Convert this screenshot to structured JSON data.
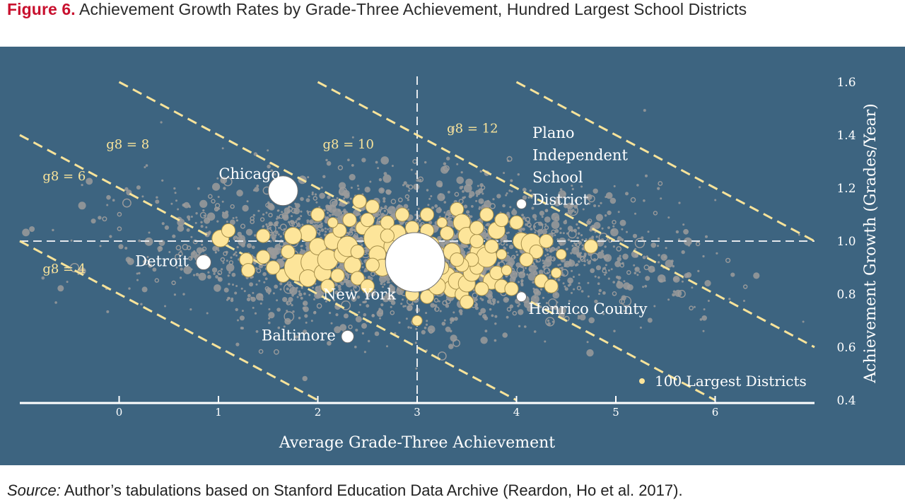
{
  "figure": {
    "label": "Figure 6.",
    "title": "Achievement Growth Rates by Grade-Three Achievement, Hundred Largest School Districts"
  },
  "source": {
    "label": "Source:",
    "text": "Author’s tabulations based on Stanford Education Data Archive (Reardon, Ho et al. 2017)."
  },
  "colors": {
    "panel_bg": "#3d6480",
    "all_districts": "#9b9b9b",
    "largest_districts": "#fde59a",
    "labeled_districts": "#ffffff",
    "iso_lines": "#f8e39a",
    "reference_lines": "#e4e8ec"
  },
  "chart_data": {
    "type": "scatter",
    "title": "Achievement Growth Rates by Grade-Three Achievement, Hundred Largest School Districts",
    "xlabel": "Average Grade-Three Achievement",
    "ylabel": "Achievement Growth (Grades/Year)",
    "xlim": [
      -1.0,
      7.0
    ],
    "ylim": [
      0.4,
      1.6
    ],
    "x_ticks": [
      0,
      1,
      2,
      3,
      4,
      5,
      6
    ],
    "y_ticks": [
      0.4,
      0.6,
      0.8,
      1.0,
      1.2,
      1.4,
      1.6
    ],
    "x_tick_labels": [
      "0",
      "1",
      "2",
      "3",
      "4",
      "5",
      "6"
    ],
    "y_tick_labels": [
      "0.4",
      "0.6",
      "0.8",
      "1.0",
      "1.2",
      "1.4",
      "1.6"
    ],
    "reference_lines": {
      "x": 3.0,
      "y": 1.0
    },
    "iso_lines": [
      {
        "label": "g8 = 4",
        "g8": 4
      },
      {
        "label": "g8 = 6",
        "g8": 6
      },
      {
        "label": "g8 = 8",
        "g8": 8
      },
      {
        "label": "g8 = 10",
        "g8": 10
      },
      {
        "label": "g8 = 12",
        "g8": 12
      }
    ],
    "legend": {
      "label": "100 Largest Districts",
      "position": "bottom-right"
    },
    "background_cloud": {
      "center": [
        2.9,
        0.96
      ],
      "spread": [
        1.25,
        0.13
      ],
      "count": 2600
    },
    "labeled_districts": [
      {
        "name": "Chicago",
        "x": 1.65,
        "y": 1.19,
        "size": 12
      },
      {
        "name": "Detroit",
        "x": 0.85,
        "y": 0.92,
        "size": 6
      },
      {
        "name": "New York",
        "x": 2.98,
        "y": 0.92,
        "size": 24
      },
      {
        "name": "Baltimore",
        "x": 2.3,
        "y": 0.64,
        "size": 5
      },
      {
        "name": "Henrico County",
        "x": 4.05,
        "y": 0.79,
        "size": 4
      },
      {
        "name": "Plano Independent School District",
        "x": 4.05,
        "y": 1.14,
        "size": 4
      }
    ],
    "largest_districts": [
      {
        "x": 1.02,
        "y": 1.01,
        "size": 5
      },
      {
        "x": 1.1,
        "y": 1.04,
        "size": 4
      },
      {
        "x": 1.28,
        "y": 0.93,
        "size": 4
      },
      {
        "x": 1.3,
        "y": 0.89,
        "size": 4
      },
      {
        "x": 1.45,
        "y": 0.94,
        "size": 4
      },
      {
        "x": 1.45,
        "y": 1.02,
        "size": 4
      },
      {
        "x": 1.65,
        "y": 0.87,
        "size": 4
      },
      {
        "x": 1.8,
        "y": 0.9,
        "size": 8
      },
      {
        "x": 1.95,
        "y": 0.92,
        "size": 7
      },
      {
        "x": 1.9,
        "y": 0.86,
        "size": 5
      },
      {
        "x": 1.9,
        "y": 1.03,
        "size": 5
      },
      {
        "x": 2.0,
        "y": 0.98,
        "size": 5
      },
      {
        "x": 2.05,
        "y": 0.88,
        "size": 5
      },
      {
        "x": 2.1,
        "y": 0.93,
        "size": 6
      },
      {
        "x": 2.15,
        "y": 1.0,
        "size": 5
      },
      {
        "x": 2.2,
        "y": 0.87,
        "size": 4
      },
      {
        "x": 2.25,
        "y": 0.95,
        "size": 5
      },
      {
        "x": 2.3,
        "y": 0.98,
        "size": 6
      },
      {
        "x": 2.35,
        "y": 0.91,
        "size": 5
      },
      {
        "x": 2.4,
        "y": 0.86,
        "size": 4
      },
      {
        "x": 2.45,
        "y": 1.05,
        "size": 4
      },
      {
        "x": 2.5,
        "y": 1.08,
        "size": 4
      },
      {
        "x": 2.55,
        "y": 1.13,
        "size": 4
      },
      {
        "x": 2.22,
        "y": 1.04,
        "size": 4
      },
      {
        "x": 2.32,
        "y": 1.08,
        "size": 4
      },
      {
        "x": 2.42,
        "y": 1.15,
        "size": 4
      },
      {
        "x": 2.6,
        "y": 1.01,
        "size": 8
      },
      {
        "x": 2.6,
        "y": 0.95,
        "size": 5
      },
      {
        "x": 2.65,
        "y": 0.9,
        "size": 5
      },
      {
        "x": 2.7,
        "y": 1.07,
        "size": 4
      },
      {
        "x": 2.75,
        "y": 0.98,
        "size": 5
      },
      {
        "x": 2.8,
        "y": 1.03,
        "size": 5
      },
      {
        "x": 2.85,
        "y": 1.1,
        "size": 4
      },
      {
        "x": 2.9,
        "y": 0.95,
        "size": 5
      },
      {
        "x": 2.95,
        "y": 1.05,
        "size": 4
      },
      {
        "x": 2.5,
        "y": 0.83,
        "size": 4
      },
      {
        "x": 2.7,
        "y": 1.02,
        "size": 4
      },
      {
        "x": 2.8,
        "y": 0.92,
        "size": 4
      },
      {
        "x": 3.1,
        "y": 0.79,
        "size": 4
      },
      {
        "x": 3.0,
        "y": 0.7,
        "size": 3
      },
      {
        "x": 3.1,
        "y": 1.1,
        "size": 4
      },
      {
        "x": 3.1,
        "y": 1.04,
        "size": 4
      },
      {
        "x": 3.15,
        "y": 0.99,
        "size": 4
      },
      {
        "x": 3.2,
        "y": 0.95,
        "size": 5
      },
      {
        "x": 3.3,
        "y": 0.87,
        "size": 5
      },
      {
        "x": 3.35,
        "y": 0.82,
        "size": 5
      },
      {
        "x": 3.4,
        "y": 0.85,
        "size": 5
      },
      {
        "x": 3.45,
        "y": 0.8,
        "size": 4
      },
      {
        "x": 3.5,
        "y": 0.84,
        "size": 5
      },
      {
        "x": 3.55,
        "y": 0.88,
        "size": 5
      },
      {
        "x": 3.6,
        "y": 0.9,
        "size": 4
      },
      {
        "x": 3.62,
        "y": 0.96,
        "size": 5
      },
      {
        "x": 3.7,
        "y": 0.94,
        "size": 6
      },
      {
        "x": 3.75,
        "y": 0.85,
        "size": 5
      },
      {
        "x": 3.8,
        "y": 0.88,
        "size": 4
      },
      {
        "x": 3.85,
        "y": 0.83,
        "size": 4
      },
      {
        "x": 3.4,
        "y": 1.12,
        "size": 4
      },
      {
        "x": 3.45,
        "y": 1.07,
        "size": 5
      },
      {
        "x": 3.5,
        "y": 1.02,
        "size": 5
      },
      {
        "x": 3.6,
        "y": 1.0,
        "size": 4
      },
      {
        "x": 3.7,
        "y": 1.1,
        "size": 4
      },
      {
        "x": 3.8,
        "y": 1.04,
        "size": 5
      },
      {
        "x": 3.85,
        "y": 1.08,
        "size": 4
      },
      {
        "x": 4.0,
        "y": 1.07,
        "size": 4
      },
      {
        "x": 4.05,
        "y": 1.0,
        "size": 5
      },
      {
        "x": 4.15,
        "y": 0.99,
        "size": 6
      },
      {
        "x": 4.2,
        "y": 0.96,
        "size": 4
      },
      {
        "x": 4.25,
        "y": 0.85,
        "size": 4
      },
      {
        "x": 4.35,
        "y": 0.83,
        "size": 4
      },
      {
        "x": 4.45,
        "y": 0.95,
        "size": 3
      },
      {
        "x": 4.75,
        "y": 0.98,
        "size": 4
      },
      {
        "x": 3.9,
        "y": 0.89,
        "size": 3
      },
      {
        "x": 3.95,
        "y": 0.82,
        "size": 4
      },
      {
        "x": 3.2,
        "y": 0.83,
        "size": 5
      },
      {
        "x": 3.35,
        "y": 0.96,
        "size": 5
      },
      {
        "x": 3.55,
        "y": 0.93,
        "size": 4
      },
      {
        "x": 3.65,
        "y": 0.82,
        "size": 4
      },
      {
        "x": 3.25,
        "y": 0.9,
        "size": 4
      },
      {
        "x": 3.45,
        "y": 0.91,
        "size": 4
      },
      {
        "x": 3.5,
        "y": 0.77,
        "size": 4
      },
      {
        "x": 2.88,
        "y": 0.84,
        "size": 4
      },
      {
        "x": 2.95,
        "y": 0.8,
        "size": 4
      },
      {
        "x": 2.4,
        "y": 0.96,
        "size": 4
      },
      {
        "x": 2.1,
        "y": 0.83,
        "size": 4
      },
      {
        "x": 1.7,
        "y": 0.96,
        "size": 4
      },
      {
        "x": 1.55,
        "y": 0.9,
        "size": 4
      },
      {
        "x": 1.75,
        "y": 1.02,
        "size": 5
      },
      {
        "x": 2.0,
        "y": 1.1,
        "size": 4
      },
      {
        "x": 3.3,
        "y": 1.03,
        "size": 4
      },
      {
        "x": 3.75,
        "y": 0.98,
        "size": 4
      },
      {
        "x": 4.1,
        "y": 0.93,
        "size": 4
      },
      {
        "x": 4.3,
        "y": 1.0,
        "size": 4
      },
      {
        "x": 3.05,
        "y": 0.86,
        "size": 4
      },
      {
        "x": 3.4,
        "y": 0.93,
        "size": 4
      },
      {
        "x": 2.55,
        "y": 0.91,
        "size": 4
      },
      {
        "x": 3.6,
        "y": 1.05,
        "size": 4
      },
      {
        "x": 3.85,
        "y": 0.95,
        "size": 3
      },
      {
        "x": 2.15,
        "y": 1.07,
        "size": 3
      },
      {
        "x": 3.25,
        "y": 1.07,
        "size": 3
      },
      {
        "x": 4.4,
        "y": 0.88,
        "size": 3
      }
    ]
  }
}
